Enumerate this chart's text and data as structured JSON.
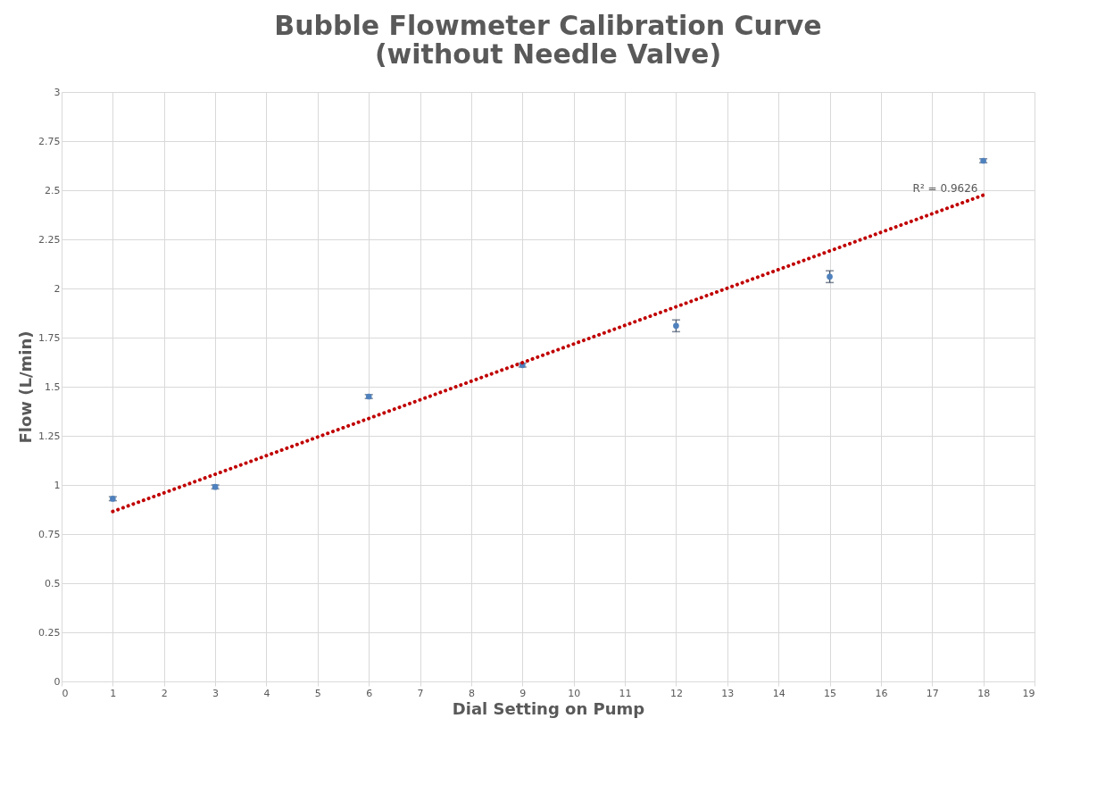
{
  "chart_data": {
    "type": "scatter",
    "title": [
      "Bubble Flowmeter Calibration Curve",
      "(without Needle Valve)"
    ],
    "xlabel": "Dial Setting on Pump",
    "ylabel": "Flow (L/min)",
    "xlim": [
      0,
      19
    ],
    "xticks": [
      0,
      1,
      2,
      3,
      4,
      5,
      6,
      7,
      8,
      9,
      10,
      11,
      12,
      13,
      14,
      15,
      16,
      17,
      18,
      19
    ],
    "ylim": [
      0,
      3
    ],
    "yticks": [
      0,
      0.25,
      0.5,
      0.75,
      1,
      1.25,
      1.5,
      1.75,
      2,
      2.25,
      2.5,
      2.75,
      3
    ],
    "grid": true,
    "marker": "circle",
    "series": [
      {
        "color": "#4f81bd",
        "x": [
          1,
          3,
          6,
          9,
          12,
          15,
          18
        ],
        "values": [
          0.93,
          0.99,
          1.45,
          1.61,
          1.81,
          2.06,
          2.65
        ],
        "errors": [
          0.01,
          0.01,
          0.01,
          0.01,
          0.03,
          0.03,
          0.01
        ]
      },
      {
        "type": "line",
        "color": "#c00000",
        "line_style": "dotted",
        "marker": "none",
        "x": [
          1,
          18
        ],
        "values": [
          0.865,
          2.475
        ]
      }
    ],
    "annotations": [
      "R² = 0.9626"
    ]
  }
}
